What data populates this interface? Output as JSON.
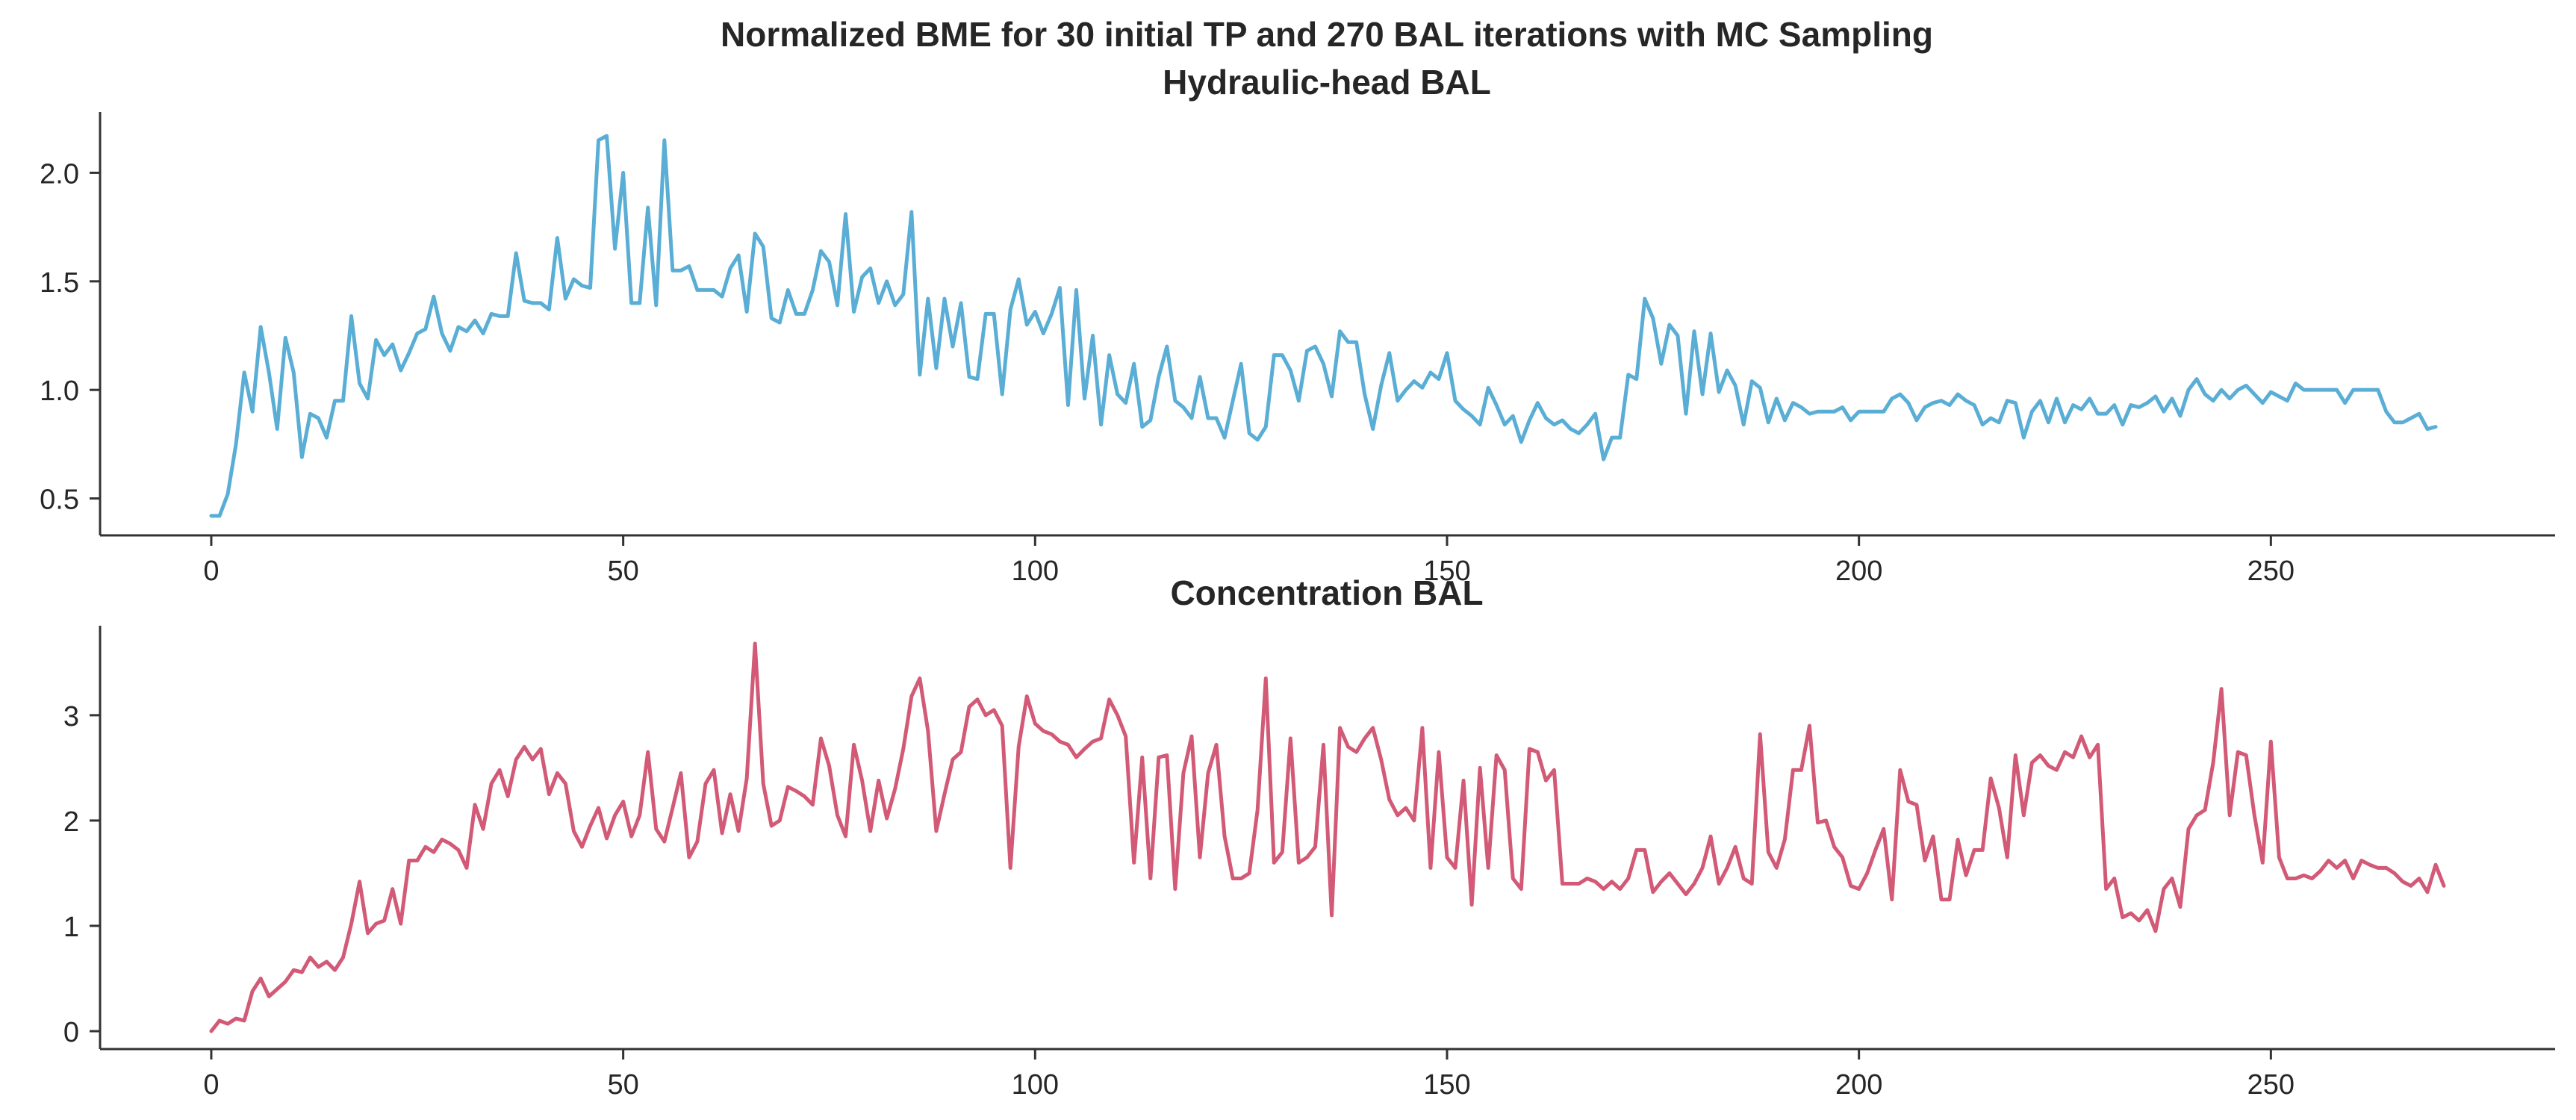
{
  "figure": {
    "suptitle": "Normalized BME for 30 initial TP and 270 BAL iterations with MC Sampling",
    "colors": {
      "series_hydraulic": "#5aaed5",
      "series_concentration": "#d25a76",
      "axis": "#333333",
      "text": "#262626"
    }
  },
  "chart_data": [
    {
      "type": "line",
      "title": "Hydraulic-head BAL",
      "xlabel": "",
      "ylabel": "",
      "xlim": [
        -13.5,
        284.5
      ],
      "ylim": [
        0.33,
        2.28
      ],
      "xticks": [
        0,
        50,
        100,
        150,
        200,
        250
      ],
      "yticks": [
        0.5,
        1.0,
        1.5,
        2.0
      ],
      "ytick_labels": [
        "0.5",
        "1.0",
        "1.5",
        "2.0"
      ],
      "grid": false,
      "legend": "none",
      "series": [
        {
          "color": "#5aaed5",
          "y": [
            0.42,
            0.42,
            0.52,
            0.75,
            1.08,
            0.9,
            1.29,
            1.08,
            0.82,
            1.24,
            1.08,
            0.69,
            0.89,
            0.87,
            0.78,
            0.95,
            0.95,
            1.34,
            1.03,
            0.96,
            1.23,
            1.16,
            1.21,
            1.09,
            1.17,
            1.26,
            1.28,
            1.43,
            1.26,
            1.18,
            1.29,
            1.27,
            1.32,
            1.26,
            1.35,
            1.34,
            1.34,
            1.63,
            1.41,
            1.4,
            1.4,
            1.37,
            1.7,
            1.42,
            1.51,
            1.48,
            1.47,
            2.15,
            2.17,
            1.65,
            2.0,
            1.4,
            1.4,
            1.84,
            1.39,
            2.15,
            1.55,
            1.55,
            1.57,
            1.46,
            1.46,
            1.46,
            1.43,
            1.56,
            1.62,
            1.36,
            1.72,
            1.66,
            1.33,
            1.31,
            1.46,
            1.35,
            1.35,
            1.46,
            1.64,
            1.59,
            1.39,
            1.81,
            1.36,
            1.52,
            1.56,
            1.4,
            1.5,
            1.39,
            1.44,
            1.82,
            1.07,
            1.42,
            1.1,
            1.42,
            1.2,
            1.4,
            1.06,
            1.05,
            1.35,
            1.35,
            0.98,
            1.37,
            1.51,
            1.3,
            1.36,
            1.26,
            1.35,
            1.47,
            0.93,
            1.46,
            0.96,
            1.25,
            0.84,
            1.16,
            0.98,
            0.94,
            1.12,
            0.83,
            0.86,
            1.06,
            1.2,
            0.95,
            0.92,
            0.87,
            1.06,
            0.87,
            0.87,
            0.78,
            0.95,
            1.12,
            0.8,
            0.77,
            0.83,
            1.16,
            1.16,
            1.09,
            0.95,
            1.18,
            1.2,
            1.12,
            0.97,
            1.27,
            1.22,
            1.22,
            0.98,
            0.82,
            1.02,
            1.17,
            0.95,
            1.0,
            1.04,
            1.01,
            1.08,
            1.05,
            1.17,
            0.95,
            0.91,
            0.88,
            0.84,
            1.01,
            0.93,
            0.84,
            0.88,
            0.76,
            0.86,
            0.94,
            0.87,
            0.84,
            0.86,
            0.82,
            0.8,
            0.84,
            0.89,
            0.68,
            0.78,
            0.78,
            1.07,
            1.05,
            1.42,
            1.33,
            1.12,
            1.3,
            1.25,
            0.89,
            1.27,
            0.98,
            1.26,
            0.99,
            1.09,
            1.02,
            0.84,
            1.04,
            1.01,
            0.85,
            0.96,
            0.86,
            0.94,
            0.92,
            0.89,
            0.9,
            0.9,
            0.9,
            0.92,
            0.86,
            0.9,
            0.9,
            0.9,
            0.9,
            0.96,
            0.98,
            0.94,
            0.86,
            0.92,
            0.94,
            0.95,
            0.93,
            0.98,
            0.95,
            0.93,
            0.84,
            0.87,
            0.85,
            0.95,
            0.94,
            0.78,
            0.9,
            0.95,
            0.85,
            0.96,
            0.85,
            0.93,
            0.91,
            0.96,
            0.89,
            0.89,
            0.93,
            0.84,
            0.93,
            0.92,
            0.94,
            0.97,
            0.9,
            0.96,
            0.88,
            1.0,
            1.05,
            0.98,
            0.95,
            1.0,
            0.96,
            1.0,
            1.02,
            0.98,
            0.94,
            0.99,
            0.97,
            0.95,
            1.03,
            1.0,
            1.0,
            1.0,
            1.0,
            1.0,
            0.94,
            1.0,
            1.0,
            1.0,
            1.0,
            0.9,
            0.85,
            0.85,
            0.87,
            0.89,
            0.82,
            0.83
          ]
        }
      ]
    },
    {
      "type": "line",
      "title": "Concentration BAL",
      "xlabel": "",
      "ylabel": "",
      "xlim": [
        -13.5,
        284.5
      ],
      "ylim": [
        -0.17,
        3.85
      ],
      "xticks": [
        0,
        50,
        100,
        150,
        200,
        250
      ],
      "yticks": [
        0,
        1,
        2,
        3
      ],
      "ytick_labels": [
        "0",
        "1",
        "2",
        "3"
      ],
      "grid": false,
      "legend": "none",
      "series": [
        {
          "color": "#d25a76",
          "y": [
            0.0,
            0.1,
            0.07,
            0.12,
            0.1,
            0.38,
            0.5,
            0.33,
            0.4,
            0.47,
            0.58,
            0.56,
            0.7,
            0.61,
            0.66,
            0.58,
            0.7,
            1.02,
            1.42,
            0.93,
            1.02,
            1.05,
            1.35,
            1.02,
            1.62,
            1.62,
            1.75,
            1.7,
            1.82,
            1.78,
            1.72,
            1.55,
            2.15,
            1.92,
            2.35,
            2.48,
            2.23,
            2.58,
            2.7,
            2.58,
            2.68,
            2.25,
            2.45,
            2.35,
            1.9,
            1.75,
            1.95,
            2.12,
            1.83,
            2.05,
            2.18,
            1.85,
            2.05,
            2.65,
            1.92,
            1.8,
            2.12,
            2.45,
            1.65,
            1.8,
            2.35,
            2.48,
            1.88,
            2.25,
            1.9,
            2.4,
            3.68,
            2.35,
            1.95,
            2.0,
            2.32,
            2.28,
            2.23,
            2.15,
            2.78,
            2.52,
            2.05,
            1.85,
            2.72,
            2.38,
            1.9,
            2.38,
            2.02,
            2.3,
            2.68,
            3.18,
            3.35,
            2.85,
            1.9,
            2.25,
            2.58,
            2.65,
            3.08,
            3.15,
            3.0,
            3.05,
            2.9,
            1.55,
            2.7,
            3.18,
            2.92,
            2.85,
            2.82,
            2.75,
            2.72,
            2.6,
            2.68,
            2.75,
            2.78,
            3.15,
            3.0,
            2.8,
            1.6,
            2.6,
            1.45,
            2.6,
            2.62,
            1.35,
            2.45,
            2.8,
            1.65,
            2.45,
            2.72,
            1.85,
            1.45,
            1.45,
            1.5,
            2.1,
            3.35,
            1.6,
            1.7,
            2.78,
            1.6,
            1.65,
            1.75,
            2.72,
            1.1,
            2.88,
            2.7,
            2.65,
            2.78,
            2.88,
            2.58,
            2.2,
            2.05,
            2.12,
            2.0,
            2.88,
            1.55,
            2.65,
            1.65,
            1.55,
            2.38,
            1.2,
            2.5,
            1.55,
            2.62,
            2.48,
            1.45,
            1.35,
            2.68,
            2.65,
            2.38,
            2.48,
            1.4,
            1.4,
            1.4,
            1.45,
            1.42,
            1.35,
            1.42,
            1.35,
            1.45,
            1.72,
            1.72,
            1.32,
            1.42,
            1.5,
            1.4,
            1.3,
            1.4,
            1.55,
            1.85,
            1.4,
            1.55,
            1.75,
            1.45,
            1.4,
            2.82,
            1.7,
            1.55,
            1.82,
            2.48,
            2.48,
            2.9,
            1.98,
            2.0,
            1.75,
            1.65,
            1.38,
            1.35,
            1.5,
            1.72,
            1.92,
            1.25,
            2.48,
            2.18,
            2.15,
            1.62,
            1.85,
            1.25,
            1.25,
            1.82,
            1.48,
            1.72,
            1.72,
            2.4,
            2.12,
            1.65,
            2.62,
            2.05,
            2.55,
            2.62,
            2.52,
            2.48,
            2.65,
            2.6,
            2.8,
            2.6,
            2.72,
            1.35,
            1.45,
            1.08,
            1.12,
            1.05,
            1.15,
            0.95,
            1.35,
            1.45,
            1.18,
            1.92,
            2.05,
            2.1,
            2.55,
            3.25,
            2.05,
            2.65,
            2.62,
            2.05,
            1.6,
            2.75,
            1.65,
            1.45,
            1.45,
            1.48,
            1.45,
            1.52,
            1.62,
            1.55,
            1.62,
            1.45,
            1.62,
            1.58,
            1.55,
            1.55,
            1.5,
            1.42,
            1.38,
            1.45,
            1.32,
            1.58,
            1.38
          ]
        }
      ]
    }
  ]
}
